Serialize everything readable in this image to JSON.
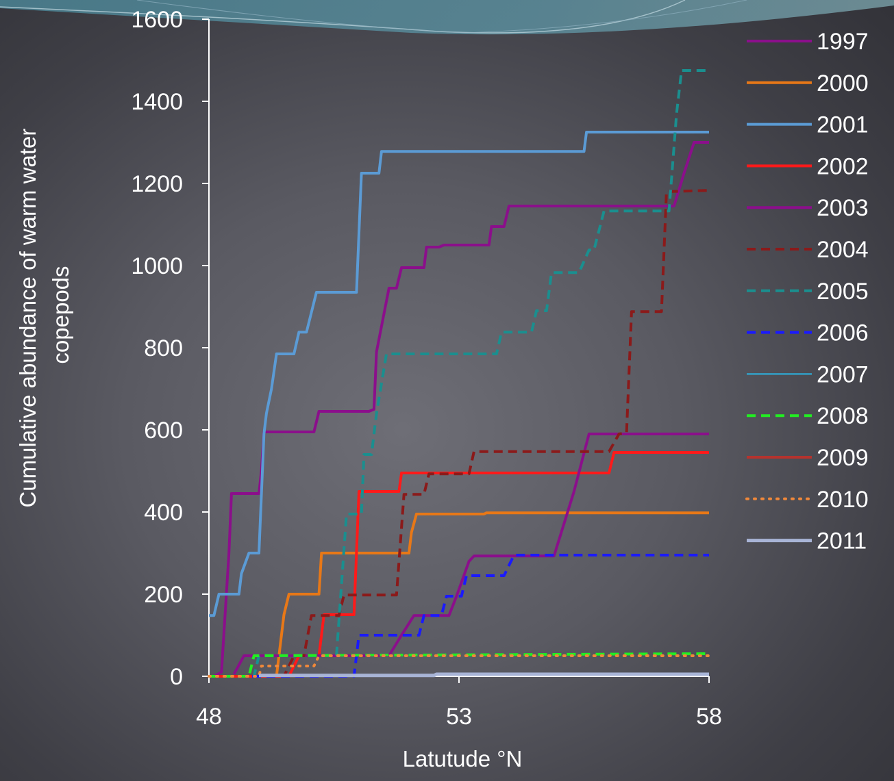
{
  "chart_data": {
    "type": "line",
    "title": "",
    "xlabel": "Latutude °N",
    "ylabel_lines": [
      "Cumulative abundance of warm water",
      "copepods"
    ],
    "xlim": [
      48,
      58
    ],
    "ylim": [
      0,
      1600
    ],
    "xticks": [
      48,
      53,
      58
    ],
    "yticks": [
      0,
      200,
      400,
      600,
      800,
      1000,
      1200,
      1400,
      1600
    ],
    "grid": false,
    "legend_position": "right",
    "series": [
      {
        "name": "1997",
        "color": "#8b0f8b",
        "dash": "solid",
        "width": 4,
        "points": [
          [
            48.1,
            0
          ],
          [
            48.25,
            10
          ],
          [
            48.4,
            300
          ],
          [
            48.45,
            445
          ],
          [
            49,
            445
          ],
          [
            49.05,
            500
          ],
          [
            49.1,
            595
          ],
          [
            50.1,
            595
          ],
          [
            50.2,
            645
          ],
          [
            51.2,
            645
          ],
          [
            51.3,
            650
          ],
          [
            51.35,
            790
          ],
          [
            51.6,
            945
          ],
          [
            51.75,
            945
          ],
          [
            51.85,
            995
          ],
          [
            52.3,
            995
          ],
          [
            52.35,
            1045
          ],
          [
            52.6,
            1045
          ],
          [
            52.7,
            1050
          ],
          [
            53.6,
            1050
          ],
          [
            53.65,
            1095
          ],
          [
            53.9,
            1095
          ],
          [
            54,
            1145
          ],
          [
            57.3,
            1145
          ],
          [
            57.5,
            1225
          ],
          [
            57.7,
            1300
          ],
          [
            58,
            1300
          ]
        ]
      },
      {
        "name": "2000",
        "color": "#e87817",
        "dash": "solid",
        "width": 4,
        "points": [
          [
            48,
            0
          ],
          [
            49.35,
            0
          ],
          [
            49.5,
            150
          ],
          [
            49.6,
            200
          ],
          [
            50.2,
            200
          ],
          [
            50.25,
            300
          ],
          [
            52,
            300
          ],
          [
            52.05,
            350
          ],
          [
            52.15,
            395
          ],
          [
            53.5,
            395
          ],
          [
            53.55,
            398
          ],
          [
            58,
            398
          ]
        ]
      },
      {
        "name": "2001",
        "color": "#5b9bd5",
        "dash": "solid",
        "width": 4,
        "points": [
          [
            48,
            148
          ],
          [
            48.1,
            148
          ],
          [
            48.2,
            200
          ],
          [
            48.6,
            200
          ],
          [
            48.65,
            250
          ],
          [
            48.8,
            300
          ],
          [
            49,
            300
          ],
          [
            49.1,
            590
          ],
          [
            49.15,
            640
          ],
          [
            49.25,
            700
          ],
          [
            49.35,
            785
          ],
          [
            49.7,
            785
          ],
          [
            49.8,
            838
          ],
          [
            49.95,
            838
          ],
          [
            50.15,
            935
          ],
          [
            50.95,
            935
          ],
          [
            51.05,
            1225
          ],
          [
            51.4,
            1225
          ],
          [
            51.45,
            1278
          ],
          [
            55.5,
            1278
          ],
          [
            55.55,
            1325
          ],
          [
            58,
            1325
          ]
        ]
      },
      {
        "name": "2002",
        "color": "#ff1a1a",
        "dash": "solid",
        "width": 4,
        "points": [
          [
            48,
            0
          ],
          [
            49.6,
            0
          ],
          [
            49.8,
            50
          ],
          [
            50.2,
            50
          ],
          [
            50.3,
            150
          ],
          [
            50.9,
            150
          ],
          [
            51,
            450
          ],
          [
            51.3,
            450
          ],
          [
            51.35,
            450
          ],
          [
            51.8,
            450
          ],
          [
            51.85,
            495
          ],
          [
            56,
            495
          ],
          [
            56.1,
            545
          ],
          [
            58,
            545
          ]
        ]
      },
      {
        "name": "2003",
        "color": "#8b0f8b",
        "dash": "solid",
        "width": 4,
        "points": [
          [
            48.5,
            5
          ],
          [
            48.7,
            50
          ],
          [
            51.3,
            50
          ],
          [
            51.6,
            50
          ],
          [
            51.85,
            100
          ],
          [
            52.1,
            148
          ],
          [
            52.7,
            148
          ],
          [
            52.8,
            148
          ],
          [
            52.95,
            195
          ],
          [
            53.2,
            280
          ],
          [
            53.3,
            293
          ],
          [
            54.9,
            293
          ],
          [
            55.3,
            450
          ],
          [
            55.6,
            590
          ],
          [
            58,
            590
          ]
        ]
      },
      {
        "name": "2004",
        "color": "#8b1a1a",
        "dash": "dashed",
        "width": 4,
        "points": [
          [
            48,
            0
          ],
          [
            49.5,
            0
          ],
          [
            49.7,
            50
          ],
          [
            49.9,
            50
          ],
          [
            50.05,
            148
          ],
          [
            50.6,
            148
          ],
          [
            50.7,
            198
          ],
          [
            51.2,
            198
          ],
          [
            51.3,
            198
          ],
          [
            51.75,
            198
          ],
          [
            51.9,
            443
          ],
          [
            52.3,
            443
          ],
          [
            52.4,
            493
          ],
          [
            53.2,
            493
          ],
          [
            53.3,
            547
          ],
          [
            56,
            547
          ],
          [
            56.2,
            590
          ],
          [
            56.35,
            593
          ],
          [
            56.45,
            888
          ],
          [
            57.05,
            888
          ],
          [
            57.15,
            1180
          ],
          [
            58,
            1183
          ]
        ]
      },
      {
        "name": "2005",
        "color": "#1a8f8f",
        "dash": "dashed",
        "width": 4,
        "points": [
          [
            48,
            0
          ],
          [
            48.65,
            0
          ],
          [
            48.9,
            0
          ],
          [
            49,
            50
          ],
          [
            50.55,
            50
          ],
          [
            50.75,
            395
          ],
          [
            51.05,
            395
          ],
          [
            51.1,
            540
          ],
          [
            51.25,
            540
          ],
          [
            51.35,
            640
          ],
          [
            51.55,
            785
          ],
          [
            53.75,
            785
          ],
          [
            53.85,
            838
          ],
          [
            54.45,
            838
          ],
          [
            54.55,
            890
          ],
          [
            54.75,
            890
          ],
          [
            54.85,
            983
          ],
          [
            55.4,
            983
          ],
          [
            55.6,
            1038
          ],
          [
            55.7,
            1038
          ],
          [
            55.9,
            1133
          ],
          [
            56.3,
            1133
          ],
          [
            57.2,
            1133
          ],
          [
            57.35,
            1370
          ],
          [
            57.45,
            1475
          ],
          [
            58,
            1475
          ]
        ]
      },
      {
        "name": "2006",
        "color": "#1a1aff",
        "dash": "dashed",
        "width": 4,
        "points": [
          [
            48,
            0
          ],
          [
            50.9,
            0
          ],
          [
            51,
            100
          ],
          [
            52.2,
            100
          ],
          [
            52.3,
            148
          ],
          [
            52.65,
            148
          ],
          [
            52.75,
            195
          ],
          [
            53.05,
            195
          ],
          [
            53.15,
            245
          ],
          [
            53.9,
            245
          ],
          [
            54.1,
            295
          ],
          [
            58,
            295
          ]
        ]
      },
      {
        "name": "2007",
        "color": "#29b8e8",
        "dash": "solid",
        "width": 2,
        "points": []
      },
      {
        "name": "2008",
        "color": "#22ee22",
        "dash": "dashed",
        "width": 4,
        "points": [
          [
            48,
            0
          ],
          [
            48.8,
            0
          ],
          [
            48.9,
            50
          ],
          [
            58,
            55
          ]
        ]
      },
      {
        "name": "2009",
        "color": "#b5332e",
        "dash": "solid",
        "width": 4,
        "points": []
      },
      {
        "name": "2010",
        "color": "#f0883a",
        "dash": "dotted",
        "width": 4,
        "points": [
          [
            48,
            0
          ],
          [
            49,
            0
          ],
          [
            49.05,
            25
          ],
          [
            50.1,
            25
          ],
          [
            50.2,
            50
          ],
          [
            58,
            50
          ]
        ]
      },
      {
        "name": "2011",
        "color": "#a8b4d6",
        "dash": "solid",
        "width": 5,
        "points": [
          [
            49,
            2
          ],
          [
            52.5,
            2
          ],
          [
            52.55,
            5
          ],
          [
            58,
            5
          ]
        ]
      }
    ]
  }
}
